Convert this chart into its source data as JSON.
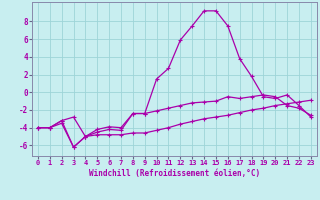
{
  "xlabel": "Windchill (Refroidissement éolien,°C)",
  "ylabel": "",
  "background_color": "#c8eef0",
  "line_color": "#aa00aa",
  "grid_color": "#9ed4d8",
  "xlim": [
    -0.5,
    23.5
  ],
  "ylim": [
    -7.2,
    10.2
  ],
  "yticks": [
    -6,
    -4,
    -2,
    0,
    2,
    4,
    6,
    8
  ],
  "xticks": [
    0,
    1,
    2,
    3,
    4,
    5,
    6,
    7,
    8,
    9,
    10,
    11,
    12,
    13,
    14,
    15,
    16,
    17,
    18,
    19,
    20,
    21,
    22,
    23
  ],
  "line1_x": [
    0,
    1,
    2,
    3,
    4,
    5,
    6,
    7,
    8,
    9,
    10,
    11,
    12,
    13,
    14,
    15,
    16,
    17,
    18,
    19,
    20,
    21,
    22,
    23
  ],
  "line1_y": [
    -4.0,
    -4.0,
    -3.5,
    -6.2,
    -5.0,
    -4.8,
    -4.8,
    -4.8,
    -4.6,
    -4.6,
    -4.3,
    -4.0,
    -3.6,
    -3.3,
    -3.0,
    -2.8,
    -2.6,
    -2.3,
    -2.0,
    -1.8,
    -1.5,
    -1.3,
    -1.1,
    -0.9
  ],
  "line2_x": [
    0,
    1,
    2,
    3,
    4,
    5,
    6,
    7,
    8,
    9,
    10,
    11,
    12,
    13,
    14,
    15,
    16,
    17,
    18,
    19,
    20,
    21,
    22,
    23
  ],
  "line2_y": [
    -4.0,
    -4.0,
    -3.2,
    -2.8,
    -5.0,
    -4.2,
    -3.9,
    -4.0,
    -2.4,
    -2.4,
    -2.1,
    -1.8,
    -1.5,
    -1.2,
    -1.1,
    -1.0,
    -0.5,
    -0.7,
    -0.5,
    -0.3,
    -0.5,
    -1.5,
    -1.8,
    -2.6
  ],
  "line3_x": [
    0,
    1,
    2,
    3,
    4,
    5,
    6,
    7,
    8,
    9,
    10,
    11,
    12,
    13,
    14,
    15,
    16,
    17,
    18,
    19,
    20,
    21,
    22,
    23
  ],
  "line3_y": [
    -4.0,
    -4.0,
    -3.2,
    -6.2,
    -5.0,
    -4.5,
    -4.2,
    -4.3,
    -2.4,
    -2.4,
    1.5,
    2.7,
    5.9,
    7.5,
    9.2,
    9.2,
    7.5,
    3.8,
    1.8,
    -0.5,
    -0.7,
    -0.3,
    -1.5,
    -2.8
  ]
}
